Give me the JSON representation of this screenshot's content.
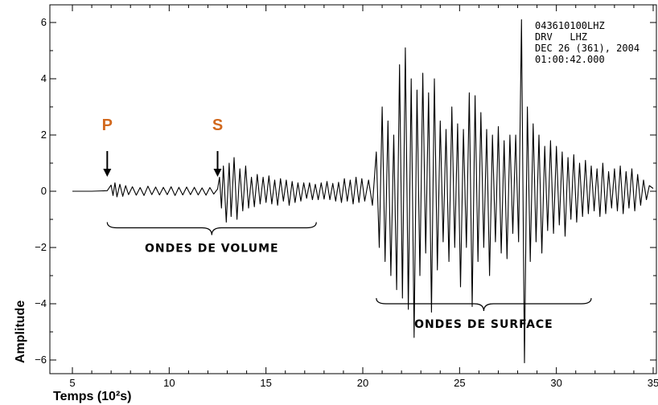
{
  "chart_data": {
    "type": "line",
    "xlabel": "Temps (10²s)",
    "ylabel": "Amplitude",
    "xlim": [
      5,
      35
    ],
    "ylim": [
      -6.5,
      6.5
    ],
    "x_ticks": [
      5,
      10,
      15,
      20,
      25,
      30,
      35
    ],
    "y_ticks": [
      6,
      4,
      2,
      0,
      -2,
      -4,
      -6
    ],
    "x_tick_labels": [
      "5",
      "10",
      "15",
      "20",
      "25",
      "30",
      "35"
    ],
    "y_tick_labels": [
      "6",
      "4",
      "2",
      "0",
      "−2",
      "−4",
      "−6"
    ],
    "grid": false,
    "station_info": [
      "043610100LHZ",
      "DRV   LHZ",
      "DEC 26 (361), 2004",
      "01:00:42.000"
    ],
    "phases": [
      {
        "label": "P",
        "x": 6.8,
        "color": "#d2691e"
      },
      {
        "label": "S",
        "x": 12.5,
        "color": "#d2691e"
      }
    ],
    "brackets": [
      {
        "label": "ONDES DE VOLUME",
        "x_start": 6.8,
        "x_end": 17.6,
        "y": -1.3
      },
      {
        "label": "ONDES DE SURFACE",
        "x_start": 20.7,
        "x_end": 31.8,
        "y": -4.0
      }
    ],
    "series": [
      {
        "values": [
          [
            5.0,
            0
          ],
          [
            6.0,
            0
          ],
          [
            6.8,
            0.02
          ],
          [
            7.0,
            0.22
          ],
          [
            7.1,
            -0.15
          ],
          [
            7.2,
            0.3
          ],
          [
            7.3,
            -0.2
          ],
          [
            7.45,
            0.25
          ],
          [
            7.6,
            -0.18
          ],
          [
            7.75,
            0.2
          ],
          [
            7.9,
            -0.12
          ],
          [
            8.1,
            0.16
          ],
          [
            8.3,
            -0.14
          ],
          [
            8.5,
            0.13
          ],
          [
            8.7,
            -0.15
          ],
          [
            8.9,
            0.18
          ],
          [
            9.1,
            -0.12
          ],
          [
            9.3,
            0.15
          ],
          [
            9.5,
            -0.13
          ],
          [
            9.7,
            0.14
          ],
          [
            9.9,
            -0.12
          ],
          [
            10.1,
            0.16
          ],
          [
            10.3,
            -0.15
          ],
          [
            10.5,
            0.14
          ],
          [
            10.7,
            -0.13
          ],
          [
            10.9,
            0.15
          ],
          [
            11.1,
            -0.12
          ],
          [
            11.3,
            0.14
          ],
          [
            11.5,
            -0.13
          ],
          [
            11.7,
            0.12
          ],
          [
            11.9,
            -0.14
          ],
          [
            12.1,
            0.13
          ],
          [
            12.3,
            -0.1
          ],
          [
            12.5,
            0.08
          ],
          [
            12.6,
            0.5
          ],
          [
            12.7,
            -0.6
          ],
          [
            12.8,
            0.9
          ],
          [
            12.95,
            -1.1
          ],
          [
            13.1,
            1.0
          ],
          [
            13.2,
            -0.9
          ],
          [
            13.35,
            1.2
          ],
          [
            13.5,
            -1.0
          ],
          [
            13.65,
            0.8
          ],
          [
            13.8,
            -0.7
          ],
          [
            13.95,
            0.9
          ],
          [
            14.1,
            -0.6
          ],
          [
            14.25,
            0.5
          ],
          [
            14.4,
            -0.55
          ],
          [
            14.55,
            0.6
          ],
          [
            14.7,
            -0.45
          ],
          [
            14.85,
            0.5
          ],
          [
            15.0,
            -0.4
          ],
          [
            15.15,
            0.55
          ],
          [
            15.3,
            -0.45
          ],
          [
            15.45,
            0.4
          ],
          [
            15.6,
            -0.5
          ],
          [
            15.75,
            0.45
          ],
          [
            15.9,
            -0.35
          ],
          [
            16.05,
            0.4
          ],
          [
            16.2,
            -0.5
          ],
          [
            16.35,
            0.35
          ],
          [
            16.5,
            -0.4
          ],
          [
            16.65,
            0.3
          ],
          [
            16.8,
            -0.35
          ],
          [
            16.95,
            0.3
          ],
          [
            17.1,
            -0.25
          ],
          [
            17.25,
            0.3
          ],
          [
            17.4,
            -0.3
          ],
          [
            17.55,
            0.25
          ],
          [
            17.7,
            -0.3
          ],
          [
            17.85,
            0.3
          ],
          [
            18.0,
            -0.28
          ],
          [
            18.15,
            0.35
          ],
          [
            18.3,
            -0.3
          ],
          [
            18.45,
            0.28
          ],
          [
            18.6,
            -0.35
          ],
          [
            18.75,
            0.32
          ],
          [
            18.9,
            -0.4
          ],
          [
            19.05,
            0.45
          ],
          [
            19.2,
            -0.35
          ],
          [
            19.35,
            0.4
          ],
          [
            19.5,
            -0.45
          ],
          [
            19.65,
            0.5
          ],
          [
            19.8,
            -0.4
          ],
          [
            19.95,
            0.45
          ],
          [
            20.1,
            -0.35
          ],
          [
            20.3,
            0.4
          ],
          [
            20.5,
            -0.5
          ],
          [
            20.7,
            1.4
          ],
          [
            20.85,
            -2.0
          ],
          [
            21.0,
            3.0
          ],
          [
            21.15,
            -2.5
          ],
          [
            21.3,
            2.5
          ],
          [
            21.45,
            -3.0
          ],
          [
            21.6,
            2.0
          ],
          [
            21.75,
            -3.5
          ],
          [
            21.9,
            4.5
          ],
          [
            22.05,
            -3.8
          ],
          [
            22.2,
            5.1
          ],
          [
            22.35,
            -4.2
          ],
          [
            22.5,
            4.0
          ],
          [
            22.65,
            -5.2
          ],
          [
            22.8,
            3.6
          ],
          [
            22.95,
            -3.0
          ],
          [
            23.1,
            4.2
          ],
          [
            23.25,
            -2.2
          ],
          [
            23.4,
            3.5
          ],
          [
            23.55,
            -4.3
          ],
          [
            23.7,
            4.0
          ],
          [
            23.85,
            -2.8
          ],
          [
            24.0,
            2.5
          ],
          [
            24.15,
            -1.8
          ],
          [
            24.3,
            2.2
          ],
          [
            24.45,
            -2.5
          ],
          [
            24.6,
            3.0
          ],
          [
            24.75,
            -2.0
          ],
          [
            24.9,
            2.4
          ],
          [
            25.05,
            -3.4
          ],
          [
            25.2,
            2.2
          ],
          [
            25.35,
            -2.0
          ],
          [
            25.5,
            3.5
          ],
          [
            25.65,
            -4.1
          ],
          [
            25.8,
            3.4
          ],
          [
            25.95,
            -2.5
          ],
          [
            26.1,
            2.8
          ],
          [
            26.25,
            -2.0
          ],
          [
            26.4,
            2.2
          ],
          [
            26.55,
            -3.0
          ],
          [
            26.7,
            2.0
          ],
          [
            26.85,
            -1.8
          ],
          [
            27.0,
            2.3
          ],
          [
            27.15,
            -2.2
          ],
          [
            27.3,
            1.8
          ],
          [
            27.45,
            -2.4
          ],
          [
            27.6,
            2.0
          ],
          [
            27.75,
            -1.5
          ],
          [
            27.9,
            2.0
          ],
          [
            28.05,
            -1.8
          ],
          [
            28.2,
            6.1
          ],
          [
            28.35,
            -6.1
          ],
          [
            28.5,
            3.0
          ],
          [
            28.65,
            -2.5
          ],
          [
            28.8,
            2.4
          ],
          [
            28.95,
            -1.8
          ],
          [
            29.1,
            2.0
          ],
          [
            29.25,
            -2.2
          ],
          [
            29.4,
            1.6
          ],
          [
            29.55,
            -1.4
          ],
          [
            29.7,
            1.8
          ],
          [
            29.85,
            -1.5
          ],
          [
            30.0,
            1.6
          ],
          [
            30.15,
            -1.2
          ],
          [
            30.3,
            1.4
          ],
          [
            30.45,
            -1.6
          ],
          [
            30.6,
            1.2
          ],
          [
            30.75,
            -1.0
          ],
          [
            30.9,
            1.3
          ],
          [
            31.05,
            -1.1
          ],
          [
            31.2,
            1.0
          ],
          [
            31.35,
            -0.9
          ],
          [
            31.5,
            1.1
          ],
          [
            31.65,
            -0.8
          ],
          [
            31.8,
            0.9
          ],
          [
            31.95,
            -0.7
          ],
          [
            32.1,
            0.8
          ],
          [
            32.25,
            -0.9
          ],
          [
            32.4,
            1.0
          ],
          [
            32.55,
            -0.8
          ],
          [
            32.7,
            0.7
          ],
          [
            32.85,
            -0.6
          ],
          [
            33.0,
            0.8
          ],
          [
            33.15,
            -0.7
          ],
          [
            33.3,
            0.9
          ],
          [
            33.45,
            -0.8
          ],
          [
            33.6,
            0.7
          ],
          [
            33.75,
            -0.6
          ],
          [
            33.9,
            0.8
          ],
          [
            34.05,
            -0.7
          ],
          [
            34.2,
            0.6
          ],
          [
            34.35,
            -0.5
          ],
          [
            34.5,
            0.4
          ],
          [
            34.65,
            -0.3
          ],
          [
            34.8,
            0.2
          ],
          [
            35.0,
            0.1
          ]
        ]
      }
    ]
  }
}
